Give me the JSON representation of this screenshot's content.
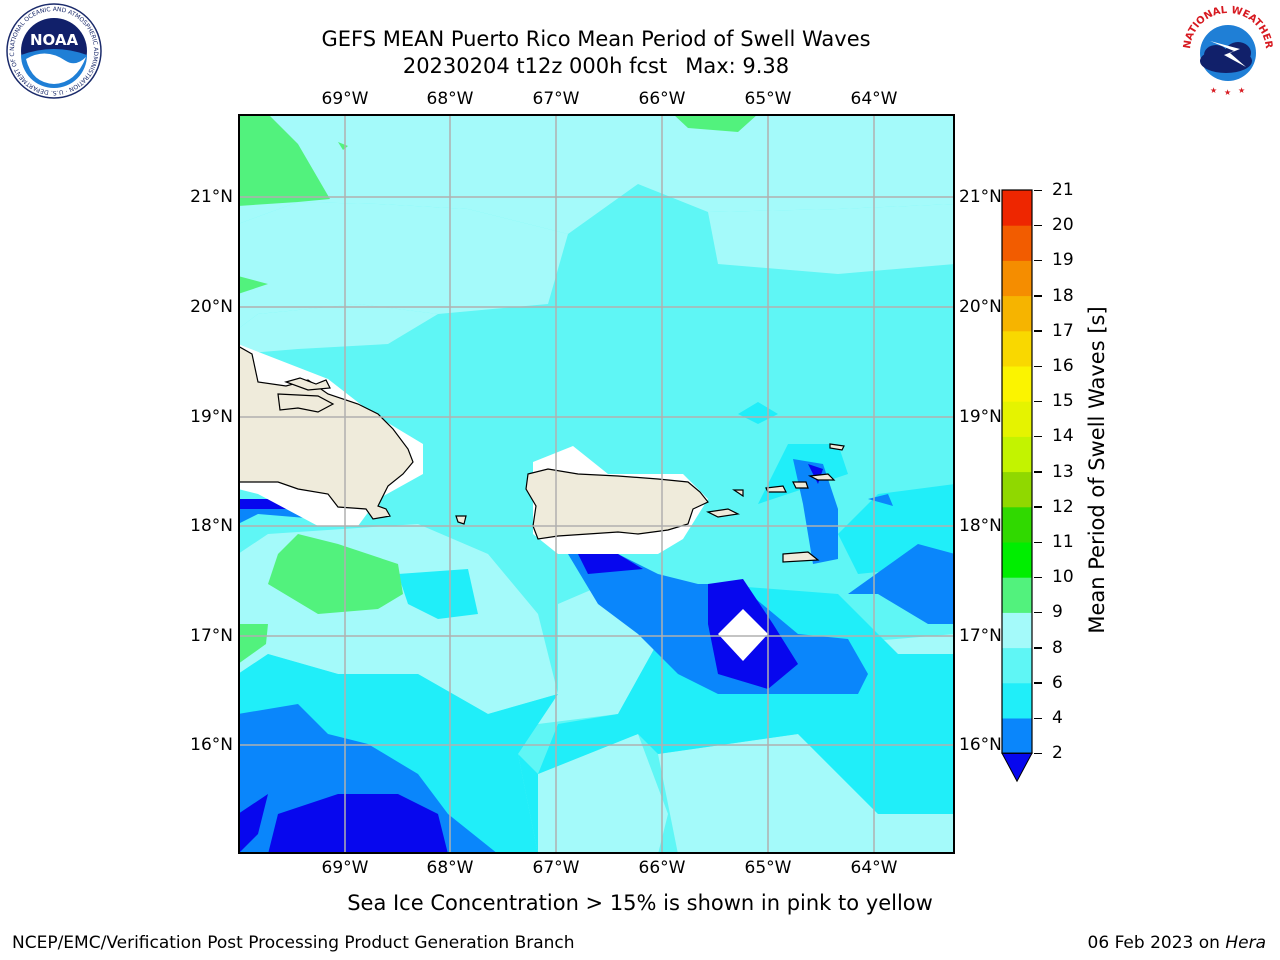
{
  "header": {
    "title_line1": "GEFS MEAN Puerto Rico Mean Period of Swell Waves",
    "run": "20230204 t12z 000h fcst",
    "max": "Max: 9.38"
  },
  "logos": {
    "left": {
      "text": "NOAA",
      "ring": "NATIONAL OCEANIC AND ATMOSPHERIC ADMINISTRATION · U.S. DEPARTMENT OF COMMERCE"
    },
    "right": {
      "ring": "NATIONAL WEATHER SERVICE"
    }
  },
  "axes": {
    "lon_labels": [
      "69°W",
      "68°W",
      "67°W",
      "66°W",
      "65°W",
      "64°W"
    ],
    "lat_labels": [
      "21°N",
      "20°N",
      "19°N",
      "18°N",
      "17°N",
      "16°N"
    ]
  },
  "colorbar": {
    "title": "Mean Period of Swell Waves [s]",
    "levels": [
      2,
      4,
      6,
      8,
      9,
      10,
      11,
      12,
      13,
      14,
      15,
      16,
      17,
      18,
      19,
      20,
      21
    ],
    "labels": [
      "2",
      "4",
      "6",
      "8",
      "9",
      "10",
      "11",
      "12",
      "13",
      "14",
      "15",
      "16",
      "17",
      "18",
      "19",
      "20",
      "21"
    ],
    "colors": [
      "#0a86fb",
      "#20eef9",
      "#5ff6f5",
      "#a4fafa",
      "#52f27d",
      "#00ee00",
      "#30d900",
      "#90d800",
      "#c3f300",
      "#e5f300",
      "#fbf400",
      "#f9d800",
      "#f6b400",
      "#f58d00",
      "#f25c00",
      "#ee2600"
    ],
    "under_color": "#0707ee"
  },
  "map_colors": {
    "lt2": "#0707ee",
    "c2_4": "#0a86fb",
    "c4_6": "#20eef9",
    "c6_8": "#5ff6f5",
    "c8_9": "#a4fafa",
    "c9_10": "#52f27d",
    "land": "#efebdb",
    "grid": "#b0b0b0"
  },
  "footer": {
    "note": "Sea Ice Concentration > 15% is shown in pink to yellow",
    "credit": "NCEP/EMC/Verification Post Processing Product Generation Branch",
    "date": "06 Feb 2023 on",
    "machine": "Hera"
  }
}
